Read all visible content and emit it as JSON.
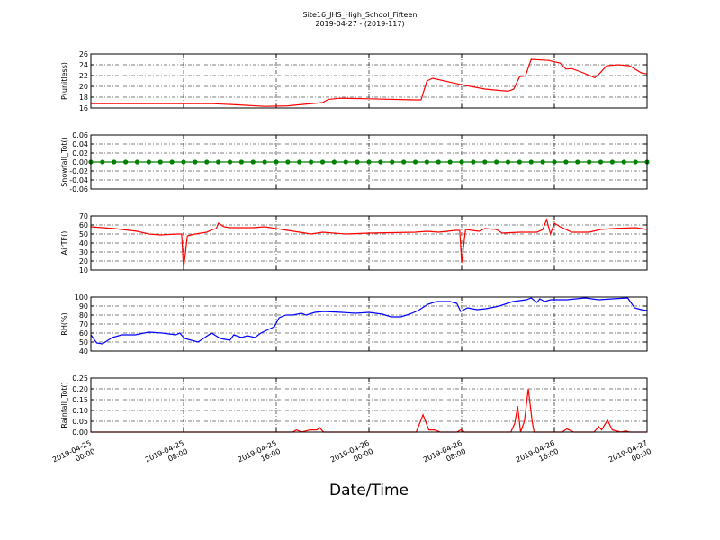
{
  "title": "Site16_JHS_High_School_Fifteen",
  "subtitle": "2019-04-27 - (2019-117)",
  "chart_data": [
    {
      "type": "line",
      "ylabel": "P(unitless)",
      "grid": true,
      "xlim": [
        "2019-04-25 00:00",
        "2019-04-27 00:00"
      ],
      "ylim": [
        16,
        26
      ],
      "yticks": [
        16,
        18,
        20,
        22,
        24,
        26
      ],
      "x": [
        "2019-04-25 00:00",
        "2019-04-25 10:30",
        "2019-04-25 12:30",
        "2019-04-25 15:00",
        "2019-04-25 17:00",
        "2019-04-25 18:00",
        "2019-04-25 20:00",
        "2019-04-25 20:30",
        "2019-04-25 21:30",
        "2019-04-26 00:00",
        "2019-04-26 04:00",
        "2019-04-26 04:30",
        "2019-04-26 05:00",
        "2019-04-26 05:30",
        "2019-04-26 08:00",
        "2019-04-26 10:00",
        "2019-04-26 12:00",
        "2019-04-26 12:30",
        "2019-04-26 13:00",
        "2019-04-26 13:30",
        "2019-04-26 14:00",
        "2019-04-26 15:30",
        "2019-04-26 16:30",
        "2019-04-26 17:00",
        "2019-04-26 17:30",
        "2019-04-26 18:30",
        "2019-04-26 19:30",
        "2019-04-26 20:00",
        "2019-04-26 20:30",
        "2019-04-26 21:30",
        "2019-04-26 22:30",
        "2019-04-26 23:30",
        "2019-04-27 00:00"
      ],
      "series": [
        {
          "color": "#ff0000",
          "values": [
            16.8,
            16.8,
            16.6,
            16.3,
            16.4,
            16.6,
            17.0,
            17.6,
            17.8,
            17.7,
            17.5,
            17.5,
            21.0,
            21.5,
            20.3,
            19.5,
            19.1,
            19.5,
            21.8,
            21.9,
            25.0,
            24.8,
            24.3,
            23.2,
            23.3,
            22.5,
            21.6,
            22.6,
            23.8,
            24.0,
            23.8,
            22.5,
            22.3
          ]
        }
      ]
    },
    {
      "type": "line",
      "ylabel": "Snowfall_Tot()",
      "grid": true,
      "xlim": [
        "2019-04-25 00:00",
        "2019-04-27 00:00"
      ],
      "ylim": [
        -0.06,
        0.06
      ],
      "yticks": [
        -0.06,
        -0.04,
        -0.02,
        {
          "value": 0,
          "label": "0.00"
        },
        0.02,
        0.04,
        0.06
      ],
      "x": [
        "2019-04-25 00:00",
        "2019-04-25 01:00",
        "2019-04-25 02:00",
        "2019-04-25 03:00",
        "2019-04-25 04:00",
        "2019-04-25 05:00",
        "2019-04-25 06:00",
        "2019-04-25 07:00",
        "2019-04-25 08:00",
        "2019-04-25 09:00",
        "2019-04-25 10:00",
        "2019-04-25 11:00",
        "2019-04-25 12:00",
        "2019-04-25 13:00",
        "2019-04-25 14:00",
        "2019-04-25 15:00",
        "2019-04-25 16:00",
        "2019-04-25 17:00",
        "2019-04-25 18:00",
        "2019-04-25 19:00",
        "2019-04-25 20:00",
        "2019-04-25 21:00",
        "2019-04-25 22:00",
        "2019-04-25 23:00",
        "2019-04-26 00:00",
        "2019-04-26 01:00",
        "2019-04-26 02:00",
        "2019-04-26 03:00",
        "2019-04-26 04:00",
        "2019-04-26 05:00",
        "2019-04-26 06:00",
        "2019-04-26 07:00",
        "2019-04-26 08:00",
        "2019-04-26 09:00",
        "2019-04-26 10:00",
        "2019-04-26 11:00",
        "2019-04-26 12:00",
        "2019-04-26 13:00",
        "2019-04-26 14:00",
        "2019-04-26 15:00",
        "2019-04-26 16:00",
        "2019-04-26 17:00",
        "2019-04-26 18:00",
        "2019-04-26 19:00",
        "2019-04-26 20:00",
        "2019-04-26 21:00",
        "2019-04-26 22:00",
        "2019-04-26 23:00",
        "2019-04-27 00:00"
      ],
      "series": [
        {
          "color": "#008000",
          "marker": "o",
          "values": [
            0,
            0,
            0,
            0,
            0,
            0,
            0,
            0,
            0,
            0,
            0,
            0,
            0,
            0,
            0,
            0,
            0,
            0,
            0,
            0,
            0,
            0,
            0,
            0,
            0,
            0,
            0,
            0,
            0,
            0,
            0,
            0,
            0,
            0,
            0,
            0,
            0,
            0,
            0,
            0,
            0,
            0,
            0,
            0,
            0,
            0,
            0,
            0,
            0
          ]
        }
      ]
    },
    {
      "type": "line",
      "ylabel": "AirTF()",
      "grid": true,
      "xlim": [
        "2019-04-25 00:00",
        "2019-04-27 00:00"
      ],
      "ylim": [
        10,
        70
      ],
      "yticks": [
        10,
        20,
        30,
        40,
        50,
        60,
        70
      ],
      "x": [
        "2019-04-25 00:00",
        "2019-04-25 02:00",
        "2019-04-25 04:00",
        "2019-04-25 05:00",
        "2019-04-25 06:00",
        "2019-04-25 07:30",
        "2019-04-25 07:50",
        "2019-04-25 08:00",
        "2019-04-25 08:20",
        "2019-04-25 09:00",
        "2019-04-25 10:00",
        "2019-04-25 10:30",
        "2019-04-25 10:50",
        "2019-04-25 11:00",
        "2019-04-25 11:30",
        "2019-04-25 12:00",
        "2019-04-25 14:00",
        "2019-04-25 15:00",
        "2019-04-25 16:00",
        "2019-04-25 17:00",
        "2019-04-25 18:00",
        "2019-04-25 19:00",
        "2019-04-25 20:00",
        "2019-04-25 22:00",
        "2019-04-26 00:00",
        "2019-04-26 04:00",
        "2019-04-26 05:00",
        "2019-04-26 06:00",
        "2019-04-26 07:30",
        "2019-04-26 07:50",
        "2019-04-26 08:00",
        "2019-04-26 08:20",
        "2019-04-26 09:30",
        "2019-04-26 10:00",
        "2019-04-26 11:00",
        "2019-04-26 11:30",
        "2019-04-26 13:00",
        "2019-04-26 14:30",
        "2019-04-26 15:00",
        "2019-04-26 15:20",
        "2019-04-26 15:40",
        "2019-04-26 16:00",
        "2019-04-26 16:30",
        "2019-04-26 17:30",
        "2019-04-26 19:00",
        "2019-04-26 20:00",
        "2019-04-26 21:00",
        "2019-04-26 23:00",
        "2019-04-27 00:00"
      ],
      "series": [
        {
          "color": "#ff0000",
          "values": [
            58,
            56,
            53,
            50,
            49,
            50,
            50,
            12,
            48,
            50,
            52,
            55,
            56,
            62,
            58,
            57,
            57,
            58,
            56,
            54,
            52,
            50,
            52,
            50,
            51,
            52,
            53,
            52,
            54,
            54,
            18,
            55,
            53,
            56,
            55,
            51,
            52,
            52,
            55,
            66,
            50,
            62,
            58,
            52,
            52,
            55,
            56,
            57,
            55
          ]
        }
      ]
    },
    {
      "type": "line",
      "ylabel": "RH(%)",
      "grid": true,
      "xlim": [
        "2019-04-25 00:00",
        "2019-04-27 00:00"
      ],
      "ylim": [
        40,
        100
      ],
      "yticks": [
        40,
        50,
        60,
        70,
        80,
        90,
        100
      ],
      "x": [
        "2019-04-25 00:00",
        "2019-04-25 00:30",
        "2019-04-25 01:00",
        "2019-04-25 01:50",
        "2019-04-25 02:40",
        "2019-04-25 03:50",
        "2019-04-25 05:00",
        "2019-04-25 06:10",
        "2019-04-25 07:20",
        "2019-04-25 07:40",
        "2019-04-25 08:05",
        "2019-04-25 09:15",
        "2019-04-25 10:25",
        "2019-04-25 11:10",
        "2019-04-25 12:00",
        "2019-04-25 12:20",
        "2019-04-25 13:00",
        "2019-04-25 13:30",
        "2019-04-25 14:10",
        "2019-04-25 14:40",
        "2019-04-25 15:30",
        "2019-04-25 15:50",
        "2019-04-25 16:15",
        "2019-04-25 16:50",
        "2019-04-25 17:25",
        "2019-04-25 18:10",
        "2019-04-25 18:35",
        "2019-04-25 19:20",
        "2019-04-25 20:05",
        "2019-04-25 21:40",
        "2019-04-25 22:50",
        "2019-04-26 00:00",
        "2019-04-26 01:10",
        "2019-04-26 01:55",
        "2019-04-26 02:45",
        "2019-04-26 03:30",
        "2019-04-26 04:15",
        "2019-04-26 05:05",
        "2019-04-26 05:50",
        "2019-04-26 07:00",
        "2019-04-26 07:35",
        "2019-04-26 07:55",
        "2019-04-26 08:30",
        "2019-04-26 09:20",
        "2019-04-26 10:05",
        "2019-04-26 10:30",
        "2019-04-26 11:15",
        "2019-04-26 12:25",
        "2019-04-26 13:35",
        "2019-04-26 14:00",
        "2019-04-26 14:30",
        "2019-04-26 14:45",
        "2019-04-26 15:10",
        "2019-04-26 15:40",
        "2019-04-26 17:05",
        "2019-04-26 18:40",
        "2019-04-26 19:50",
        "2019-04-26 21:00",
        "2019-04-26 22:20",
        "2019-04-26 22:55",
        "2019-04-26 23:30",
        "2019-04-27 00:00"
      ],
      "series": [
        {
          "color": "#0000ff",
          "values": [
            58,
            49,
            48,
            55,
            58,
            58,
            61,
            60,
            58,
            60,
            54,
            50,
            60,
            54,
            52,
            58,
            55,
            57,
            55,
            60,
            65,
            67,
            77,
            80,
            80,
            82,
            80,
            83,
            84,
            83,
            82,
            83,
            81,
            78,
            78,
            81,
            85,
            92,
            95,
            95,
            93,
            84,
            88,
            86,
            87,
            88,
            90,
            95,
            97,
            99,
            94,
            98,
            95,
            97,
            97,
            99,
            97,
            98,
            99,
            88,
            86,
            85
          ]
        }
      ]
    },
    {
      "type": "line",
      "ylabel": "Rainfall_Tot()",
      "xlabel": "Date/Time",
      "grid": true,
      "xlim": [
        "2019-04-25 00:00",
        "2019-04-27 00:00"
      ],
      "xticks": [
        {
          "value": "2019-04-25 00:00",
          "label": "2019-04-25\n00:00"
        },
        {
          "value": "2019-04-25 08:00",
          "label": "2019-04-25\n08:00"
        },
        {
          "value": "2019-04-25 16:00",
          "label": "2019-04-25\n16:00"
        },
        {
          "value": "2019-04-26 00:00",
          "label": "2019-04-26\n00:00"
        },
        {
          "value": "2019-04-26 08:00",
          "label": "2019-04-26\n08:00"
        },
        {
          "value": "2019-04-26 16:00",
          "label": "2019-04-26\n16:00"
        },
        {
          "value": "2019-04-27 00:00",
          "label": "2019-04-27\n00:00"
        }
      ],
      "ylim": [
        0,
        0.25
      ],
      "yticks": [
        {
          "value": 0,
          "label": "0.00"
        },
        0.05,
        {
          "value": 0.1,
          "label": "0.10"
        },
        0.15,
        {
          "value": 0.2,
          "label": "0.20"
        },
        0.25
      ],
      "x": [
        "2019-04-25 00:00",
        "2019-04-25 17:25",
        "2019-04-25 17:45",
        "2019-04-25 18:10",
        "2019-04-25 18:55",
        "2019-04-25 19:30",
        "2019-04-25 19:45",
        "2019-04-25 20:05",
        "2019-04-26 04:05",
        "2019-04-26 04:40",
        "2019-04-26 05:10",
        "2019-04-26 05:40",
        "2019-04-26 06:10",
        "2019-04-26 07:35",
        "2019-04-26 07:55",
        "2019-04-26 08:15",
        "2019-04-26 12:15",
        "2019-04-26 12:35",
        "2019-04-26 12:50",
        "2019-04-26 13:05",
        "2019-04-26 13:25",
        "2019-04-26 13:45",
        "2019-04-26 14:05",
        "2019-04-26 14:15",
        "2019-04-26 16:40",
        "2019-04-26 17:05",
        "2019-04-26 17:40",
        "2019-04-26 19:25",
        "2019-04-26 19:50",
        "2019-04-26 20:05",
        "2019-04-26 20:35",
        "2019-04-26 21:00",
        "2019-04-26 21:45",
        "2019-04-26 22:10",
        "2019-04-26 22:30",
        "2019-04-27 00:00"
      ],
      "series": [
        {
          "color": "#ff0000",
          "values": [
            0,
            0,
            0.01,
            0,
            0.01,
            0.01,
            0.02,
            0,
            0,
            0.08,
            0.01,
            0.01,
            0,
            0,
            0.01,
            0,
            0,
            0.04,
            0.12,
            0,
            0.05,
            0.2,
            0.05,
            0,
            0,
            0.015,
            0,
            0,
            0.025,
            0.01,
            0.055,
            0.01,
            0,
            0.005,
            0,
            0
          ]
        }
      ]
    }
  ]
}
